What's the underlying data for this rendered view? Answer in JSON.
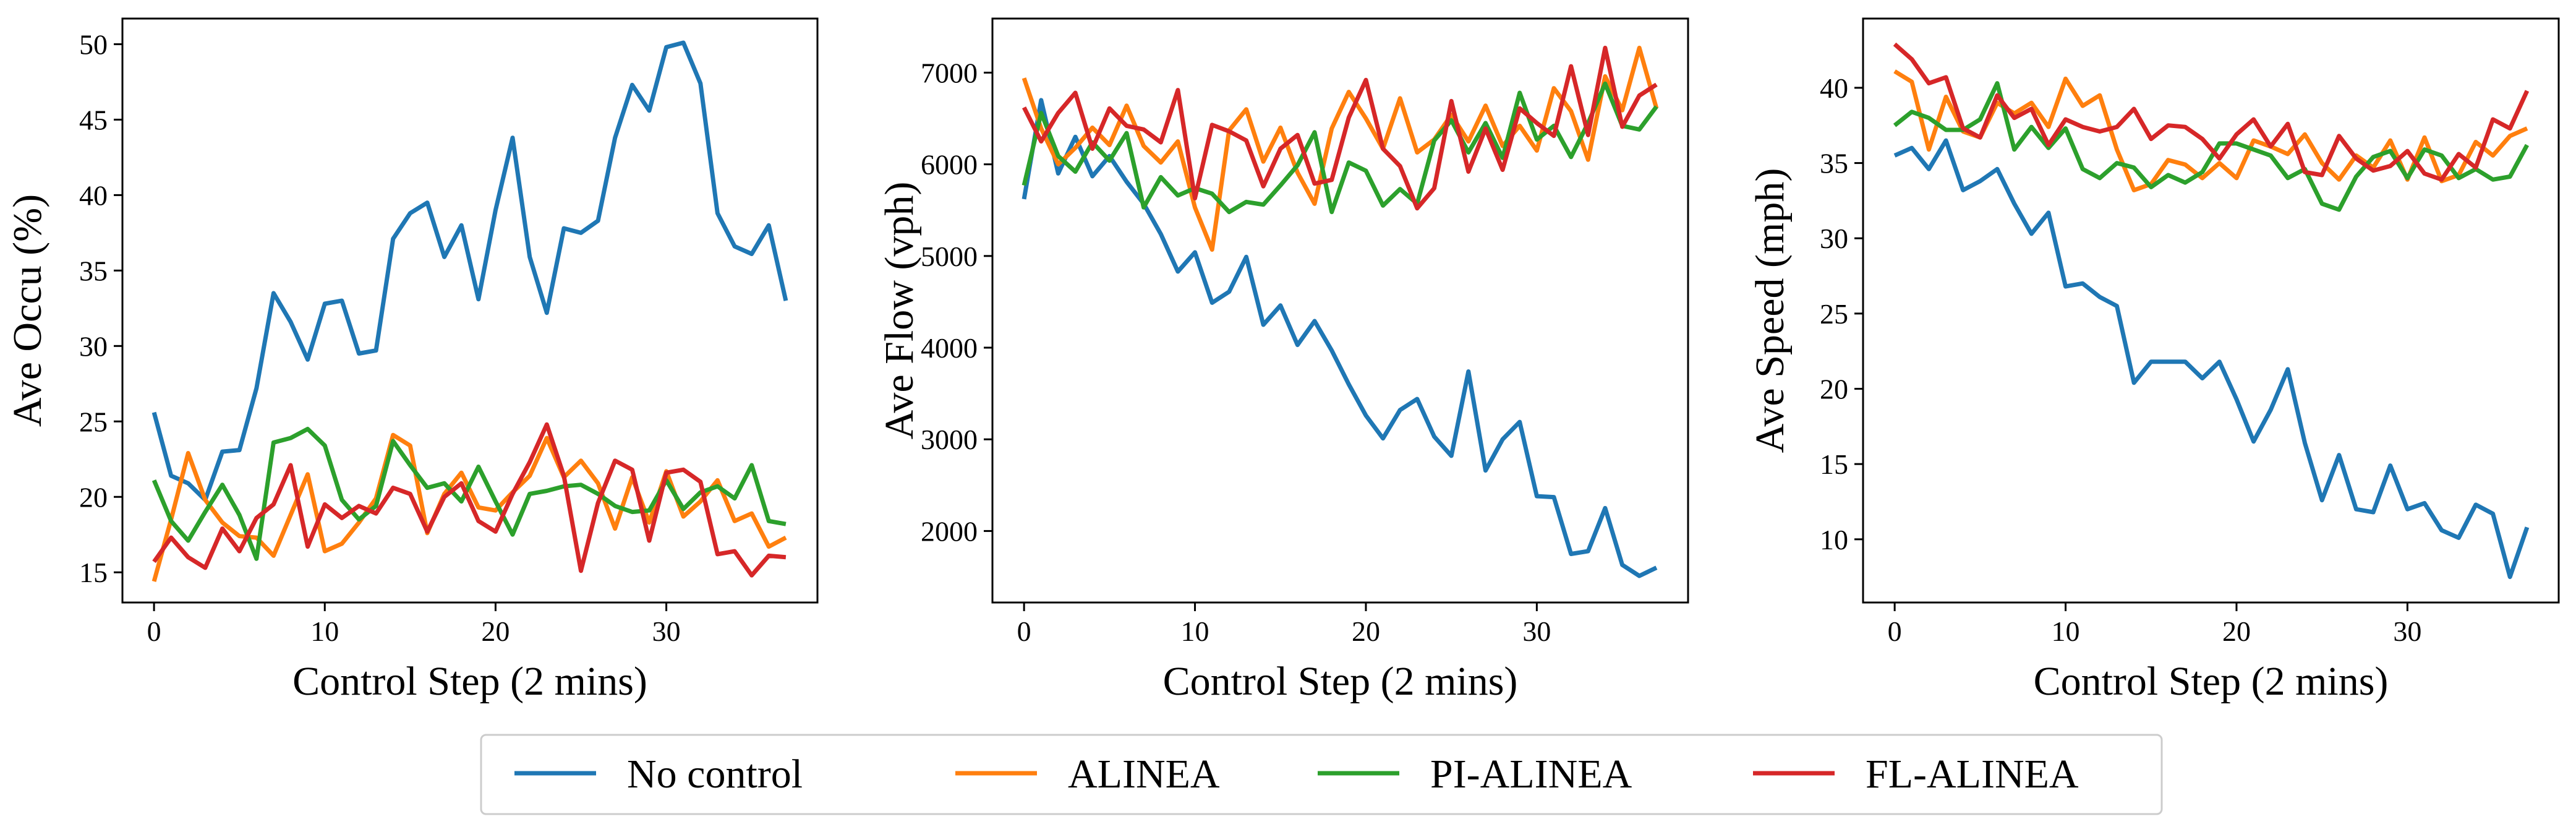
{
  "chart_data": [
    {
      "type": "line",
      "xlabel": "Control Step (2 mins)",
      "ylabel": "Ave Occu (%)",
      "xlim": [
        -1.85,
        38.85
      ],
      "ylim": [
        13.0,
        51.7
      ],
      "xticks": [
        0,
        10,
        20,
        30
      ],
      "yticks": [
        15,
        20,
        25,
        30,
        35,
        40,
        45,
        50
      ],
      "tick_labels_x": [
        "0",
        "10",
        "20",
        "30"
      ],
      "tick_labels_y": [
        "15",
        "20",
        "25",
        "30",
        "35",
        "40",
        "45",
        "50"
      ],
      "x": [
        0,
        1,
        2,
        3,
        4,
        5,
        6,
        7,
        8,
        9,
        10,
        11,
        12,
        13,
        14,
        15,
        16,
        17,
        18,
        19,
        20,
        21,
        22,
        23,
        24,
        25,
        26,
        27,
        28,
        29,
        30,
        31,
        32,
        33,
        34,
        35,
        36,
        37
      ],
      "series": [
        {
          "name": "No control",
          "color": "#1f77b4",
          "values": [
            25.6,
            21.4,
            20.9,
            19.8,
            23.0,
            23.1,
            27.2,
            33.5,
            31.6,
            29.1,
            32.8,
            33.0,
            29.5,
            29.7,
            37.1,
            38.8,
            39.5,
            35.9,
            38.0,
            33.1,
            39.0,
            43.8,
            35.9,
            32.2,
            37.8,
            37.5,
            38.3,
            43.8,
            47.3,
            45.6,
            49.8,
            50.1,
            47.4,
            38.8,
            36.6,
            36.1,
            38.0,
            33.0
          ]
        },
        {
          "name": "ALINEA",
          "color": "#ff7f0e",
          "values": [
            14.4,
            18.5,
            22.9,
            19.8,
            18.3,
            17.4,
            17.3,
            16.1,
            18.8,
            21.5,
            16.4,
            16.9,
            18.3,
            19.9,
            24.1,
            23.4,
            17.6,
            20.2,
            21.6,
            19.3,
            19.1,
            20.3,
            21.4,
            23.9,
            21.3,
            22.4,
            20.9,
            17.9,
            21.3,
            18.3,
            21.7,
            18.7,
            19.7,
            21.1,
            18.4,
            18.9,
            16.7,
            17.3
          ]
        },
        {
          "name": "PI-ALINEA",
          "color": "#2ca02c",
          "values": [
            21.1,
            18.4,
            17.1,
            19.0,
            20.8,
            18.8,
            15.9,
            23.6,
            23.9,
            24.5,
            23.4,
            19.8,
            18.5,
            19.4,
            23.7,
            22.1,
            20.6,
            20.9,
            19.7,
            22.0,
            19.7,
            17.5,
            20.2,
            20.4,
            20.7,
            20.8,
            20.2,
            19.4,
            19.0,
            19.1,
            21.1,
            19.2,
            20.3,
            20.7,
            19.9,
            22.1,
            18.4,
            18.2
          ]
        },
        {
          "name": "FL-ALINEA",
          "color": "#d62728",
          "values": [
            15.7,
            17.3,
            16.0,
            15.3,
            17.9,
            16.4,
            18.6,
            19.5,
            22.1,
            16.7,
            19.5,
            18.6,
            19.4,
            18.9,
            20.6,
            20.2,
            17.7,
            20.0,
            20.9,
            18.4,
            17.7,
            20.2,
            22.3,
            24.8,
            21.4,
            15.1,
            19.6,
            22.4,
            21.8,
            17.1,
            21.6,
            21.8,
            21.0,
            16.2,
            16.4,
            14.8,
            16.1,
            16.0
          ]
        }
      ]
    },
    {
      "type": "line",
      "xlabel": "Control Step (2 mins)",
      "ylabel": "Ave Flow (vph)",
      "xlim": [
        -1.85,
        38.85
      ],
      "ylim": [
        1220,
        7590
      ],
      "xticks": [
        0,
        10,
        20,
        30
      ],
      "yticks": [
        2000,
        3000,
        4000,
        5000,
        6000,
        7000
      ],
      "tick_labels_x": [
        "0",
        "10",
        "20",
        "30"
      ],
      "tick_labels_y": [
        "2000",
        "3000",
        "4000",
        "5000",
        "6000",
        "7000"
      ],
      "x": [
        0,
        1,
        2,
        3,
        4,
        5,
        6,
        7,
        8,
        9,
        10,
        11,
        12,
        13,
        14,
        15,
        16,
        17,
        18,
        19,
        20,
        21,
        22,
        23,
        24,
        25,
        26,
        27,
        28,
        29,
        30,
        31,
        32,
        33,
        34,
        35,
        36,
        37
      ],
      "series": [
        {
          "name": "No control",
          "color": "#1f77b4",
          "values": [
            5620,
            6700,
            5900,
            6300,
            5870,
            6090,
            5810,
            5570,
            5240,
            4830,
            5040,
            4490,
            4610,
            4990,
            4250,
            4460,
            4030,
            4290,
            3970,
            3600,
            3260,
            3010,
            3320,
            3440,
            3030,
            2820,
            3740,
            2660,
            3000,
            3190,
            2380,
            2370,
            1750,
            1780,
            2250,
            1630,
            1510,
            1600
          ]
        },
        {
          "name": "ALINEA",
          "color": "#ff7f0e",
          "values": [
            6940,
            6390,
            6000,
            6180,
            6400,
            6210,
            6640,
            6200,
            6020,
            6250,
            5530,
            5070,
            6370,
            6600,
            6030,
            6400,
            5910,
            5570,
            6390,
            6790,
            6500,
            6170,
            6720,
            6130,
            6270,
            6540,
            6250,
            6640,
            6200,
            6420,
            6150,
            6830,
            6580,
            6050,
            6960,
            6590,
            7270,
            6610
          ]
        },
        {
          "name": "PI-ALINEA",
          "color": "#2ca02c",
          "values": [
            5770,
            6560,
            6090,
            5920,
            6240,
            6040,
            6340,
            5530,
            5860,
            5660,
            5740,
            5680,
            5480,
            5590,
            5560,
            5770,
            5990,
            6350,
            5480,
            6020,
            5930,
            5550,
            5730,
            5570,
            6260,
            6480,
            6130,
            6450,
            6070,
            6780,
            6270,
            6420,
            6080,
            6450,
            6880,
            6420,
            6380,
            6630
          ]
        },
        {
          "name": "FL-ALINEA",
          "color": "#d62728",
          "values": [
            6620,
            6250,
            6560,
            6780,
            6170,
            6610,
            6420,
            6380,
            6240,
            6810,
            5630,
            6430,
            6360,
            6260,
            5760,
            6170,
            6320,
            5790,
            5830,
            6510,
            6920,
            6170,
            5980,
            5520,
            5740,
            6690,
            5920,
            6390,
            5940,
            6610,
            6450,
            6310,
            7070,
            6320,
            7270,
            6410,
            6750,
            6870
          ]
        }
      ]
    },
    {
      "type": "line",
      "xlabel": "Control Step (2 mins)",
      "ylabel": "Ave Speed (mph)",
      "xlim": [
        -1.85,
        38.85
      ],
      "ylim": [
        5.8,
        44.6
      ],
      "xticks": [
        0,
        10,
        20,
        30
      ],
      "yticks": [
        10,
        15,
        20,
        25,
        30,
        35,
        40
      ],
      "tick_labels_x": [
        "0",
        "10",
        "20",
        "30"
      ],
      "tick_labels_y": [
        "10",
        "15",
        "20",
        "25",
        "30",
        "35",
        "40"
      ],
      "x": [
        0,
        1,
        2,
        3,
        4,
        5,
        6,
        7,
        8,
        9,
        10,
        11,
        12,
        13,
        14,
        15,
        16,
        17,
        18,
        19,
        20,
        21,
        22,
        23,
        24,
        25,
        26,
        27,
        28,
        29,
        30,
        31,
        32,
        33,
        34,
        35,
        36,
        37
      ],
      "series": [
        {
          "name": "No control",
          "color": "#1f77b4",
          "values": [
            35.5,
            36.0,
            34.6,
            36.5,
            33.2,
            33.8,
            34.6,
            32.3,
            30.3,
            31.7,
            26.8,
            27.0,
            26.1,
            25.5,
            20.4,
            21.8,
            21.8,
            21.8,
            20.7,
            21.8,
            19.3,
            16.5,
            18.6,
            21.3,
            16.4,
            12.6,
            15.6,
            12.0,
            11.8,
            14.9,
            12.0,
            12.4,
            10.6,
            10.1,
            12.3,
            11.7,
            7.5,
            10.8
          ]
        },
        {
          "name": "ALINEA",
          "color": "#ff7f0e",
          "values": [
            41.1,
            40.4,
            35.9,
            39.4,
            37.1,
            36.7,
            39.0,
            38.3,
            39.0,
            37.4,
            40.6,
            38.8,
            39.5,
            35.9,
            33.2,
            33.6,
            35.2,
            34.9,
            34.0,
            35.0,
            34.0,
            36.5,
            36.1,
            35.6,
            36.9,
            35.0,
            33.9,
            35.5,
            34.7,
            36.5,
            33.9,
            36.7,
            33.8,
            34.2,
            36.4,
            35.5,
            36.8,
            37.3
          ]
        },
        {
          "name": "PI-ALINEA",
          "color": "#2ca02c",
          "values": [
            37.5,
            38.4,
            38.0,
            37.2,
            37.2,
            37.9,
            40.3,
            35.9,
            37.4,
            36.0,
            37.3,
            34.6,
            34.0,
            35.0,
            34.7,
            33.4,
            34.2,
            33.7,
            34.4,
            36.3,
            36.3,
            35.9,
            35.5,
            34.0,
            34.6,
            32.3,
            31.9,
            34.1,
            35.4,
            35.8,
            34.0,
            35.9,
            35.5,
            34.0,
            34.6,
            33.9,
            34.1,
            36.2
          ]
        },
        {
          "name": "FL-ALINEA",
          "color": "#d62728",
          "values": [
            42.9,
            41.9,
            40.3,
            40.7,
            37.3,
            36.7,
            39.5,
            38.0,
            38.6,
            36.2,
            37.9,
            37.4,
            37.1,
            37.4,
            38.6,
            36.6,
            37.5,
            37.4,
            36.6,
            35.3,
            36.9,
            37.9,
            36.1,
            37.6,
            34.4,
            34.2,
            36.8,
            35.3,
            34.5,
            34.8,
            35.8,
            34.3,
            33.9,
            35.6,
            34.7,
            37.9,
            37.3,
            39.8
          ]
        }
      ]
    }
  ],
  "legend": {
    "position": "bottom-center",
    "entries": [
      {
        "label": "No control",
        "color": "#1f77b4"
      },
      {
        "label": "ALINEA",
        "color": "#ff7f0e"
      },
      {
        "label": "PI-ALINEA",
        "color": "#2ca02c"
      },
      {
        "label": "FL-ALINEA",
        "color": "#d62728"
      }
    ]
  }
}
